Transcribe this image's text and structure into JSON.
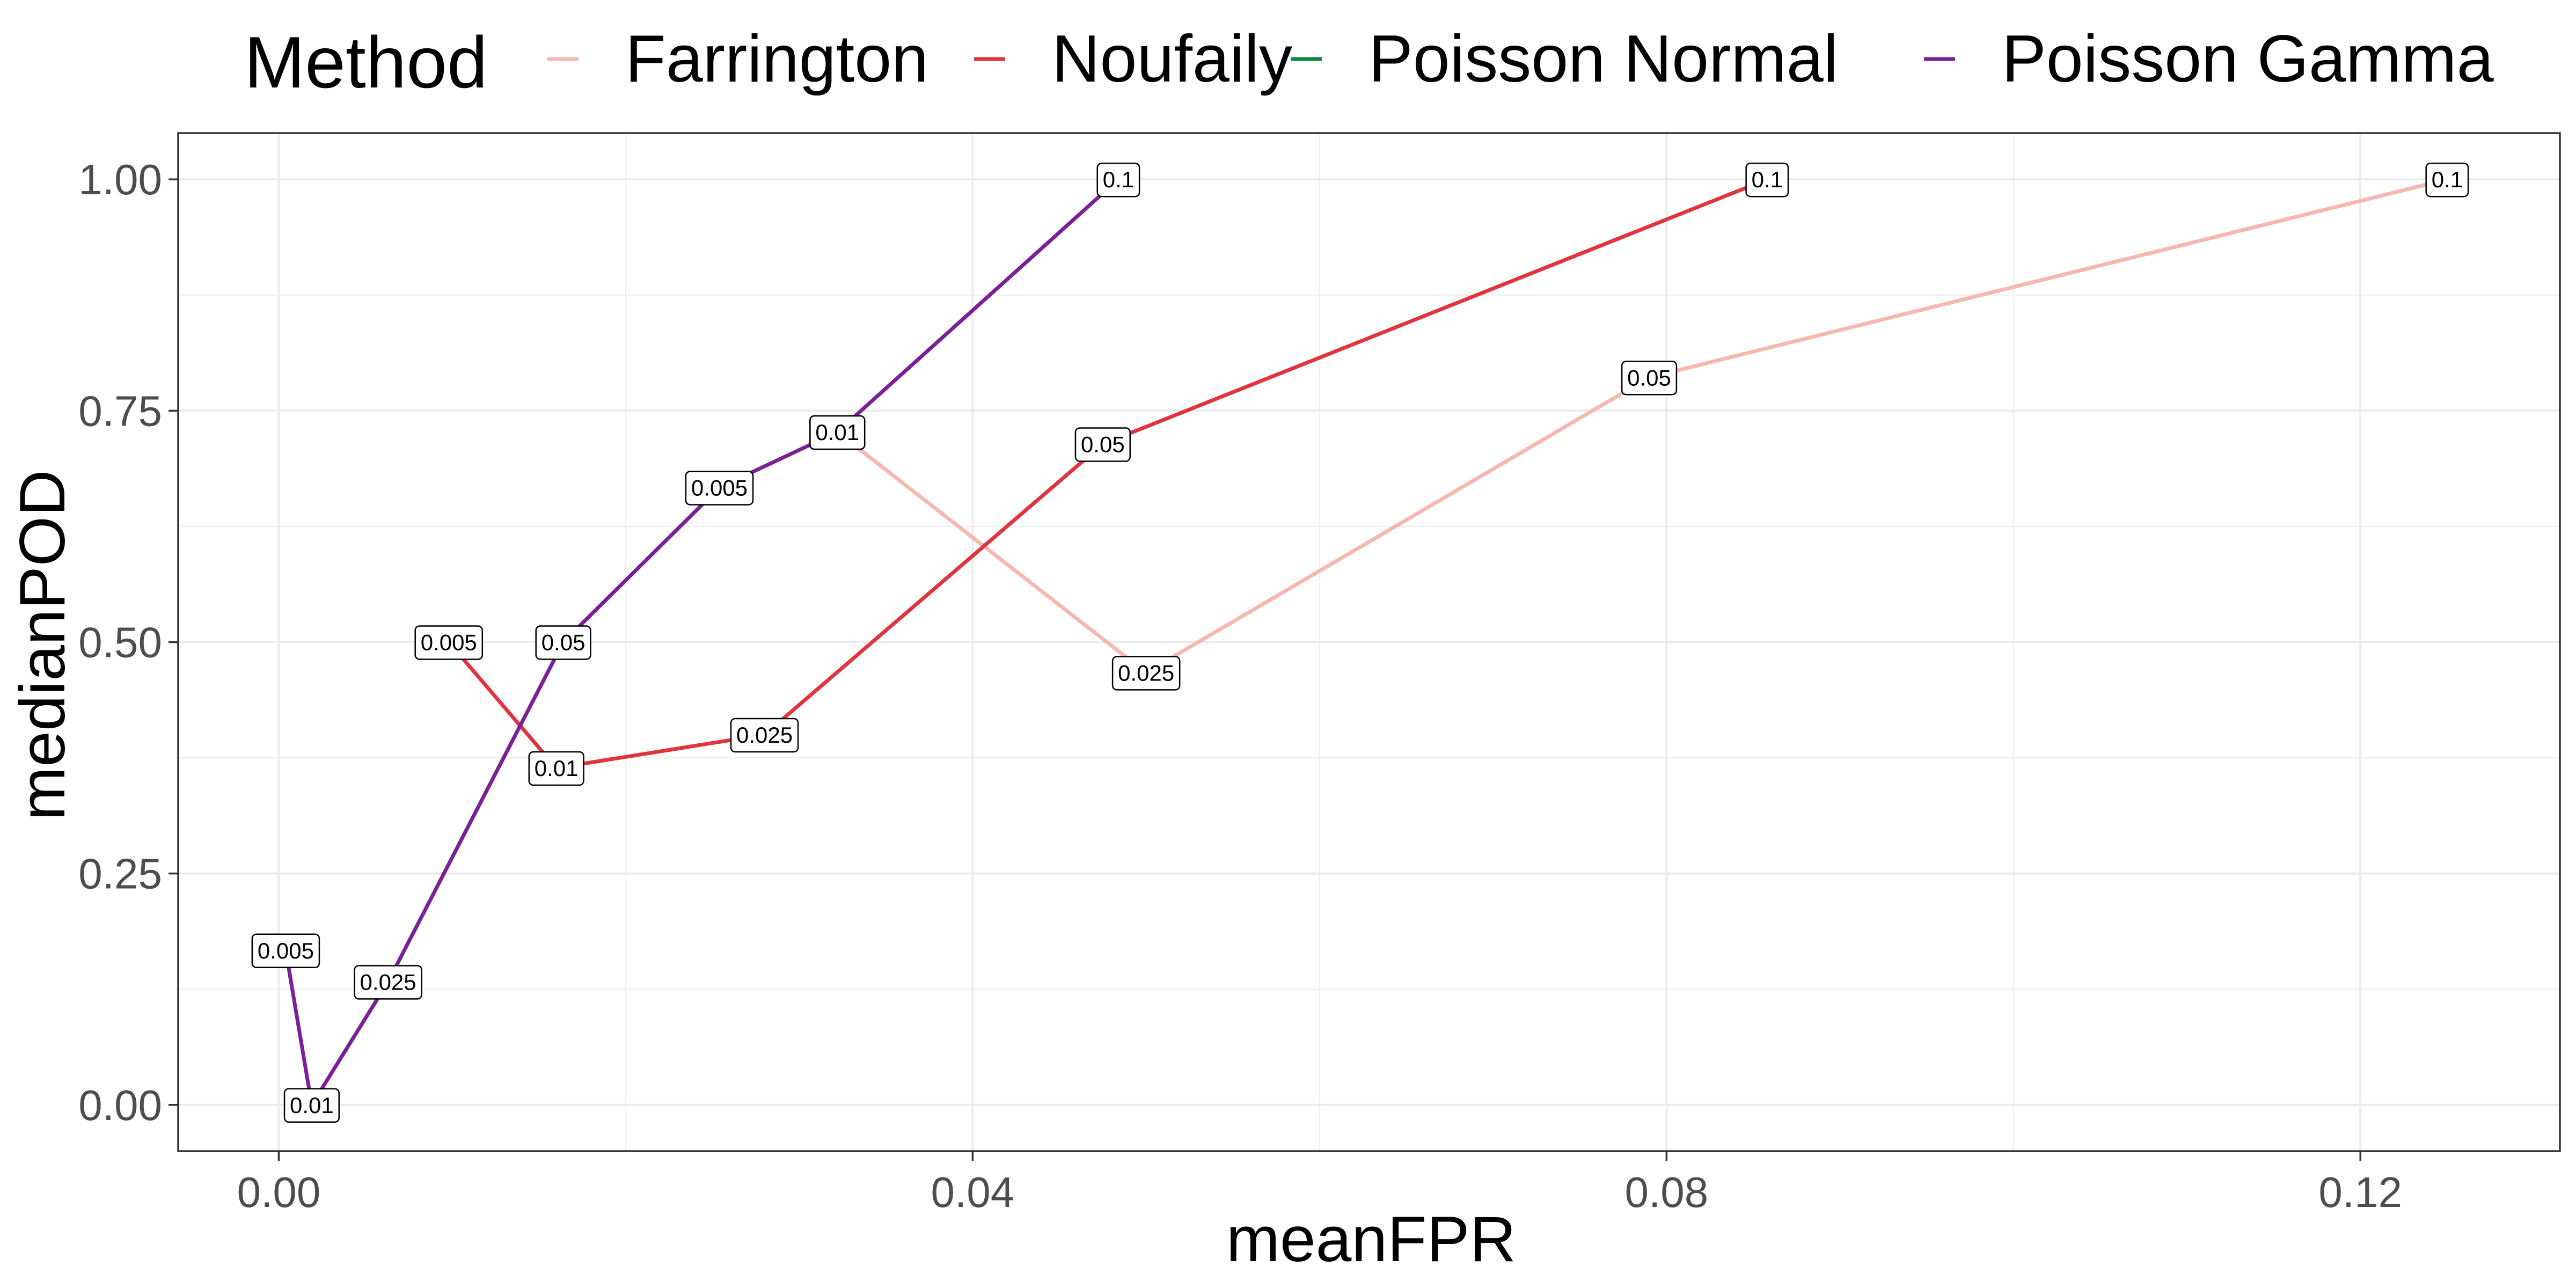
{
  "chart_data": {
    "type": "line",
    "title": "",
    "xlabel": "meanFPR",
    "ylabel": "medianPOD",
    "xlim": [
      -0.0058,
      0.1315
    ],
    "ylim": [
      -0.05,
      1.05
    ],
    "x_ticks": [
      0.0,
      0.04,
      0.08,
      0.12
    ],
    "x_tick_labels": [
      "0.00",
      "0.04",
      "0.08",
      "0.12"
    ],
    "y_ticks": [
      0.0,
      0.25,
      0.5,
      0.75,
      1.0
    ],
    "y_tick_labels": [
      "0.00",
      "0.25",
      "0.50",
      "0.75",
      "1.00"
    ],
    "grid": true,
    "legend": {
      "title": "Method",
      "placement": "top",
      "entries": [
        "Farrington",
        "Noufaily",
        "Poisson Normal",
        "Poisson Gamma"
      ]
    },
    "series": [
      {
        "name": "Farrington",
        "color": "#f4b8b0",
        "points": [
          {
            "x": 0.0322,
            "y": 0.727,
            "label": "0.01"
          },
          {
            "x": 0.05,
            "y": 0.467,
            "label": "0.025"
          },
          {
            "x": 0.079,
            "y": 0.786,
            "label": "0.05"
          },
          {
            "x": 0.125,
            "y": 1.0,
            "label": "0.1"
          }
        ]
      },
      {
        "name": "Noufaily",
        "color": "#e0343e",
        "points": [
          {
            "x": 0.0098,
            "y": 0.5,
            "label": "0.005"
          },
          {
            "x": 0.016,
            "y": 0.364,
            "label": "0.01"
          },
          {
            "x": 0.028,
            "y": 0.4,
            "label": "0.025"
          },
          {
            "x": 0.0475,
            "y": 0.714,
            "label": "0.05"
          },
          {
            "x": 0.0858,
            "y": 1.0,
            "label": "0.1"
          }
        ]
      },
      {
        "name": "Poisson Normal",
        "color": "#0a8a3c",
        "points": []
      },
      {
        "name": "Poisson Gamma",
        "color": "#7a1f96",
        "points": [
          {
            "x": 0.0004,
            "y": 0.167,
            "label": "0.005"
          },
          {
            "x": 0.0019,
            "y": 0.0,
            "label": "0.01"
          },
          {
            "x": 0.0063,
            "y": 0.133,
            "label": "0.025"
          },
          {
            "x": 0.0164,
            "y": 0.5,
            "label": "0.05"
          },
          {
            "x": 0.0254,
            "y": 0.667,
            "label": "0.005"
          },
          {
            "x": 0.0322,
            "y": 0.727,
            "label": "0.01"
          },
          {
            "x": 0.0484,
            "y": 1.0,
            "label": "0.1"
          }
        ]
      }
    ]
  }
}
